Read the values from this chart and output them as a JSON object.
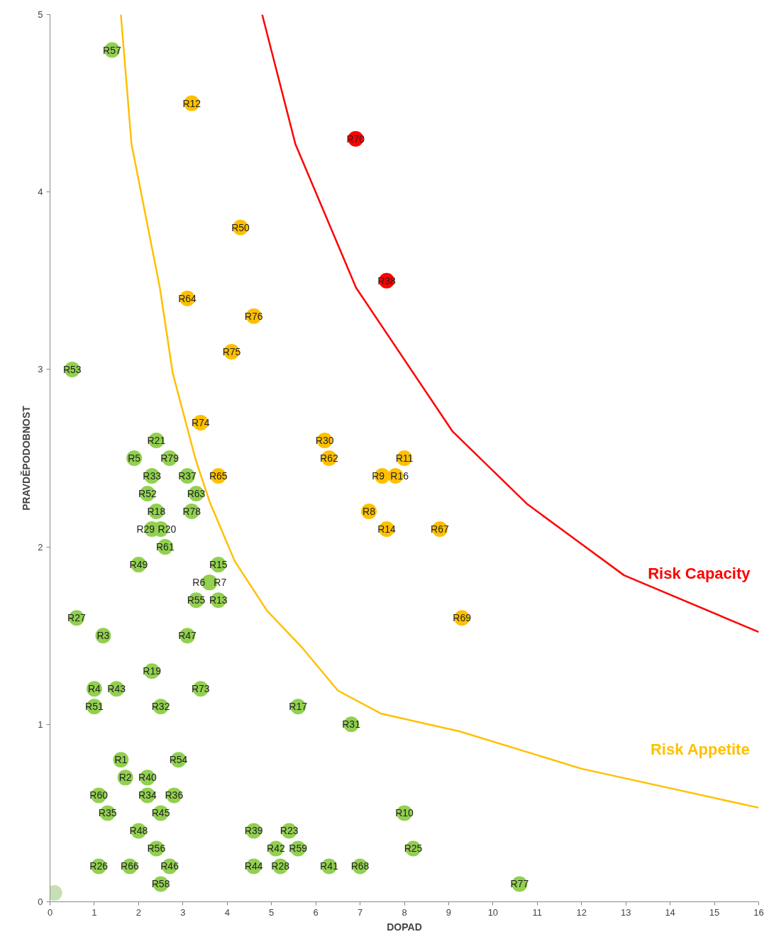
{
  "chart_data": {
    "type": "scatter",
    "xlabel": "DOPAD",
    "ylabel": "PRAVDĚPODOBNOST",
    "xlim": [
      0,
      16
    ],
    "ylim": [
      0,
      5
    ],
    "xticks": [
      0,
      1,
      2,
      3,
      4,
      5,
      6,
      7,
      8,
      9,
      10,
      11,
      12,
      13,
      14,
      15,
      16
    ],
    "yticks": [
      0,
      1,
      2,
      3,
      4,
      5
    ],
    "grid": false,
    "series": [
      {
        "marker": "circle",
        "color": "#92d050",
        "x": [
          1.4,
          0.5,
          2.4,
          1.9,
          2.7,
          2.3,
          3.1,
          2.2,
          3.3,
          2.4,
          3.2,
          2.3,
          2.5,
          2.6,
          2.0,
          3.8,
          3.6,
          3.6,
          3.3,
          3.8,
          0.6,
          1.2,
          3.1,
          2.3,
          1.0,
          1.5,
          3.4,
          1.0,
          2.5,
          5.6,
          6.8,
          1.6,
          2.9,
          1.7,
          2.2,
          1.1,
          2.2,
          2.8,
          1.3,
          2.5,
          8.0,
          2.0,
          4.6,
          5.4,
          2.4,
          5.1,
          5.6,
          8.2,
          1.1,
          1.8,
          2.7,
          4.6,
          5.2,
          6.3,
          7.0,
          2.5,
          10.6
        ],
        "values": [
          4.8,
          3.0,
          2.6,
          2.5,
          2.5,
          2.4,
          2.4,
          2.3,
          2.3,
          2.2,
          2.2,
          2.1,
          2.1,
          2.0,
          1.9,
          1.9,
          1.8,
          1.8,
          1.7,
          1.7,
          1.6,
          1.5,
          1.5,
          1.3,
          1.2,
          1.2,
          1.2,
          1.1,
          1.1,
          1.1,
          1.0,
          0.8,
          0.8,
          0.7,
          0.7,
          0.6,
          0.6,
          0.6,
          0.5,
          0.5,
          0.5,
          0.4,
          0.4,
          0.4,
          0.3,
          0.3,
          0.3,
          0.3,
          0.2,
          0.2,
          0.2,
          0.2,
          0.2,
          0.2,
          0.2,
          0.1,
          0.1
        ],
        "value_labels": [
          "R57",
          "R53",
          "R21",
          "R5",
          "R79",
          "R33",
          "R37",
          "R52",
          "R63",
          "R18",
          "R78",
          "R29",
          "R20",
          "R61",
          "R49",
          "R15",
          "R6",
          "R7",
          "R55",
          "R13",
          "R27",
          "R3",
          "R47",
          "R19",
          "R4",
          "R43",
          "R73",
          "R51",
          "R32",
          "R17",
          "R31",
          "R1",
          "R54",
          "R2",
          "R40",
          "R60",
          "R34",
          "R36",
          "R35",
          "R45",
          "R10",
          "R48",
          "R39",
          "R23",
          "R56",
          "R42",
          "R59",
          "R25",
          "R26",
          "R66",
          "R46",
          "R44",
          "R28",
          "R41",
          "R68",
          "R58",
          "R77"
        ]
      },
      {
        "marker": "circle",
        "color": "#c6e0b4",
        "x": [
          0.1
        ],
        "values": [
          0.05
        ]
      },
      {
        "marker": "circle",
        "color": "#ffc000",
        "x": [
          3.2,
          4.3,
          3.1,
          4.6,
          4.1,
          3.4,
          3.8,
          6.2,
          6.3,
          8.0,
          7.5,
          7.8,
          7.2,
          7.6,
          8.8,
          9.3
        ],
        "values": [
          4.5,
          3.8,
          3.4,
          3.3,
          3.1,
          2.7,
          2.4,
          2.6,
          2.5,
          2.5,
          2.4,
          2.4,
          2.2,
          2.1,
          2.1,
          1.6
        ],
        "value_labels": [
          "R12",
          "R50",
          "R64",
          "R76",
          "R75",
          "R74",
          "R65",
          "R30",
          "R62",
          "R11",
          "R9",
          "R16",
          "R8",
          "R14",
          "R67",
          "R69"
        ]
      },
      {
        "marker": "circle",
        "color": "#ff0000",
        "x": [
          6.9,
          7.6
        ],
        "values": [
          4.3,
          3.5
        ],
        "value_labels": [
          "R70",
          "R38"
        ]
      },
      {
        "type": "line",
        "name": "Risk Appetite",
        "color": "#ffc000",
        "x": [
          1.6,
          1.84,
          2.48,
          2.77,
          3.29,
          3.61,
          4.17,
          4.9,
          5.7,
          6.5,
          7.48,
          9.25,
          12,
          16
        ],
        "values": [
          5.0,
          4.27,
          3.46,
          2.98,
          2.49,
          2.25,
          1.92,
          1.64,
          1.43,
          1.19,
          1.06,
          0.96,
          0.75,
          0.53
        ]
      },
      {
        "type": "line",
        "name": "Risk Capacity",
        "color": "#ff0000",
        "x": [
          4.79,
          5.54,
          6.91,
          9.09,
          10.78,
          12.96,
          16
        ],
        "values": [
          5.0,
          4.27,
          3.46,
          2.65,
          2.24,
          1.84,
          1.52
        ]
      }
    ]
  }
}
